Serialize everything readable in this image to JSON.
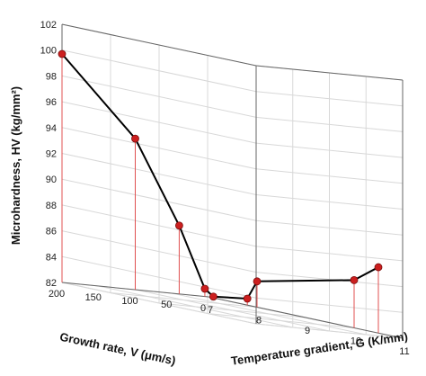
{
  "chart_data": {
    "type": "line",
    "style": "3d",
    "title": "",
    "zlabel": "Microhardness, HV (kg/mm²)",
    "xlabel": "Temperature gradient, G (K/mm)",
    "ylabel": "Growth rate, V (μm/s)",
    "zlim": [
      82,
      102
    ],
    "xlim": [
      7,
      11
    ],
    "ylim": [
      0,
      200
    ],
    "z_ticks": [
      "82",
      "84",
      "86",
      "88",
      "90",
      "92",
      "94",
      "96",
      "98",
      "100",
      "102"
    ],
    "x_ticks": [
      "7",
      "8",
      "9",
      "10",
      "11"
    ],
    "y_ticks": [
      "0",
      "50",
      "100",
      "150",
      "200"
    ],
    "grid": true,
    "line_color": "#000000",
    "marker_color": "#cc1f1f",
    "dropline_color": "#e05050",
    "points": [
      {
        "v": 200,
        "g": 7,
        "hv": 99.7
      },
      {
        "v": 100,
        "g": 7,
        "hv": 93.7
      },
      {
        "v": 40,
        "g": 7,
        "hv": 87.3
      },
      {
        "v": 5,
        "g": 7,
        "hv": 82.6
      },
      {
        "v": 0,
        "g": 7.1,
        "hv": 82.1
      },
      {
        "v": 0,
        "g": 7.8,
        "hv": 82.5
      },
      {
        "v": 0,
        "g": 8.0,
        "hv": 84.0
      },
      {
        "v": 0,
        "g": 10.0,
        "hv": 85.7
      },
      {
        "v": 0,
        "g": 10.5,
        "hv": 87.1
      }
    ]
  }
}
